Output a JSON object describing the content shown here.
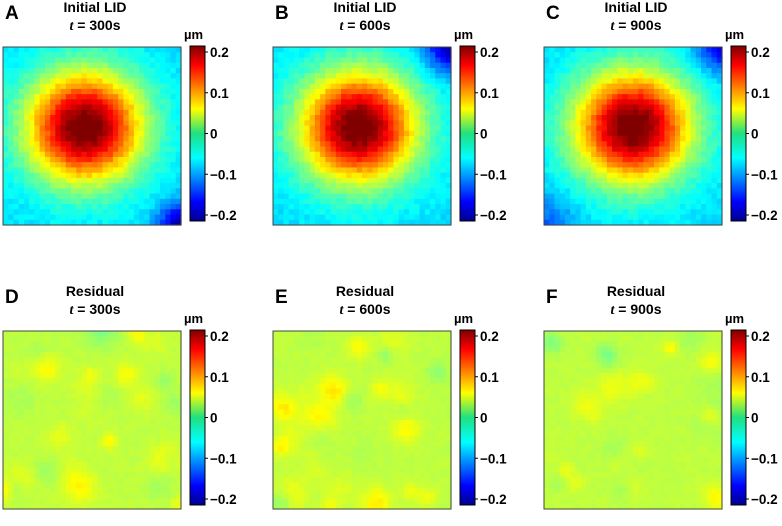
{
  "chart_data": [
    {
      "type": "heatmap",
      "panel": "A",
      "title_line1": "Initial LID",
      "title_var": "t",
      "title_value": " = 300s",
      "pattern": "blob",
      "colorbar": {
        "unit": "µm",
        "range": [
          -0.2,
          0.2
        ],
        "ticks": [
          "0.2",
          "0.1",
          "0",
          "−0.1",
          "−0.2"
        ],
        "colormap": "jet"
      }
    },
    {
      "type": "heatmap",
      "panel": "B",
      "title_line1": "Initial LID",
      "title_var": "t",
      "title_value": " = 600s",
      "pattern": "blob",
      "colorbar": {
        "unit": "µm",
        "range": [
          -0.2,
          0.2
        ],
        "ticks": [
          "0.2",
          "0.1",
          "0",
          "−0.1",
          "−0.2"
        ],
        "colormap": "jet"
      }
    },
    {
      "type": "heatmap",
      "panel": "C",
      "title_line1": "Initial LID",
      "title_var": "t",
      "title_value": " = 900s",
      "pattern": "blob",
      "colorbar": {
        "unit": "µm",
        "range": [
          -0.2,
          0.2
        ],
        "ticks": [
          "0.2",
          "0.1",
          "0",
          "−0.1",
          "−0.2"
        ],
        "colormap": "jet"
      }
    },
    {
      "type": "heatmap",
      "panel": "D",
      "title_line1": "Residual",
      "title_var": "t",
      "title_value": " = 300s",
      "pattern": "residual",
      "colorbar": {
        "unit": "µm",
        "range": [
          -0.2,
          0.2
        ],
        "ticks": [
          "0.2",
          "0.1",
          "0",
          "−0.1",
          "−0.2"
        ],
        "colormap": "jet"
      }
    },
    {
      "type": "heatmap",
      "panel": "E",
      "title_line1": "Residual",
      "title_var": "t",
      "title_value": " = 600s",
      "pattern": "residual",
      "colorbar": {
        "unit": "µm",
        "range": [
          -0.2,
          0.2
        ],
        "ticks": [
          "0.2",
          "0.1",
          "0",
          "−0.1",
          "−0.2"
        ],
        "colormap": "jet"
      }
    },
    {
      "type": "heatmap",
      "panel": "F",
      "title_line1": "Residual",
      "title_var": "t",
      "title_value": " = 900s",
      "pattern": "residual",
      "colorbar": {
        "unit": "µm",
        "range": [
          -0.2,
          0.2
        ],
        "ticks": [
          "0.2",
          "0.1",
          "0",
          "−0.1",
          "−0.2"
        ],
        "colormap": "jet"
      }
    }
  ]
}
